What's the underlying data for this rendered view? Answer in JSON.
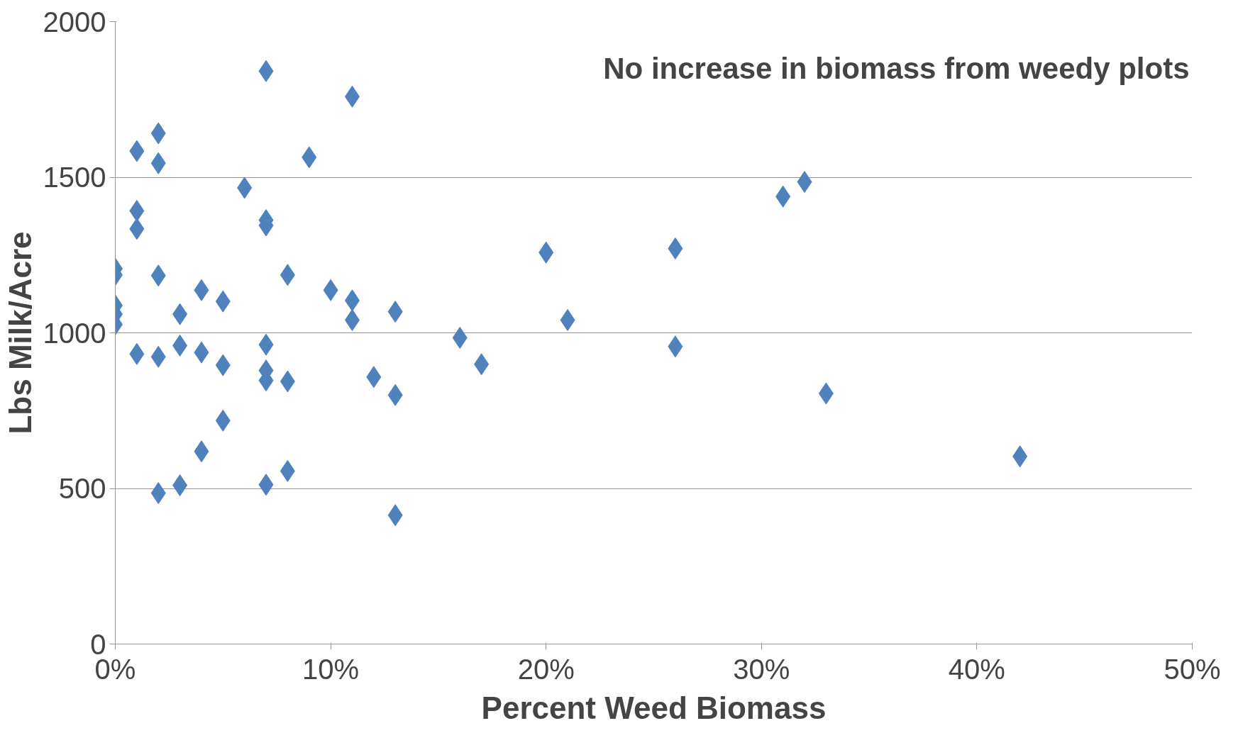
{
  "chart_data": {
    "type": "scatter",
    "xlabel": "Percent Weed Biomass",
    "ylabel": "Lbs Milk/Acre",
    "annotations": [
      "No increase in biomass from weedy plots"
    ],
    "x": [
      0,
      0,
      0,
      0,
      0,
      1,
      1,
      1,
      1,
      2,
      2,
      2,
      2,
      2,
      3,
      3,
      3,
      4,
      4,
      4,
      5,
      5,
      5,
      6,
      7,
      7,
      7,
      7,
      7,
      7,
      7,
      8,
      8,
      8,
      9,
      10,
      11,
      11,
      11,
      12,
      13,
      13,
      13,
      16,
      17,
      20,
      21,
      26,
      26,
      31,
      32,
      33,
      42
    ],
    "series": [
      {
        "color": "#4f81bd",
        "values": [
          1206,
          1186,
          1088,
          1060,
          1027,
          1584,
          1392,
          1334,
          932,
          1641,
          1545,
          1184,
          923,
          485,
          1060,
          959,
          510,
          1137,
          937,
          619,
          1101,
          896,
          718,
          1466,
          1841,
          1362,
          1345,
          962,
          879,
          847,
          512,
          1186,
          844,
          556,
          1564,
          1137,
          1759,
          1104,
          1041,
          858,
          1068,
          800,
          414,
          984,
          899,
          1258,
          1041,
          1271,
          956,
          1438,
          1485,
          805,
          603
        ]
      }
    ],
    "marker": "diamond",
    "grid": "y",
    "xlim": [
      0,
      50
    ],
    "xticks": [
      {
        "value": 0,
        "label": "0%"
      },
      {
        "value": 10,
        "label": "10%"
      },
      {
        "value": 20,
        "label": "20%"
      },
      {
        "value": 30,
        "label": "30%"
      },
      {
        "value": 40,
        "label": "40%"
      },
      {
        "value": 50,
        "label": "50%"
      }
    ],
    "ylim": [
      0,
      2000
    ],
    "yticks": [
      0,
      500,
      1000,
      1500,
      2000
    ]
  }
}
